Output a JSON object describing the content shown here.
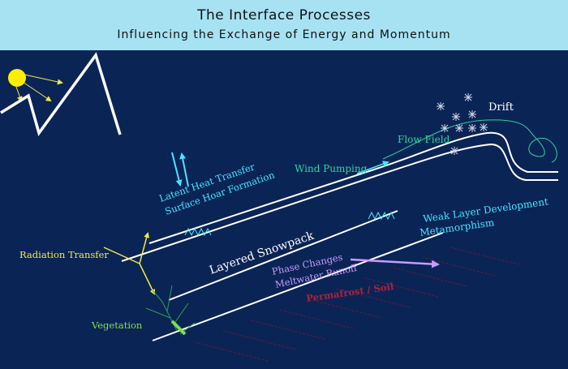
{
  "header": {
    "title": "The Interface Processes",
    "subtitle": "Influencing the Exchange of Energy and Momentum"
  },
  "labels": {
    "drift": "Drift",
    "flow_field": "Flow Field",
    "wind_pumping": "Wind Pumping",
    "latent_heat_line1": "Latent Heat Transfer",
    "latent_heat_line2": "Surface Hoar Formation",
    "weak_layer_line1": "Weak Layer Development",
    "weak_layer_line2": "Metamorphism",
    "layered_snowpack": "Layered Snowpack",
    "radiation_transfer": "Radiation Transfer",
    "phase_changes_line1": "Phase Changes",
    "phase_changes_line2": "Meltwater Runoff",
    "permafrost": "Permafrost / Soil",
    "vegetation": "Vegetation"
  },
  "colors": {
    "background": "#0b2456",
    "header_band": "#a6e2f2",
    "snow_lines": "#ffffff",
    "sun": "#ffee00",
    "radiation": "#f2e84a",
    "cyan_labels": "#44e6ff",
    "green_labels": "#2fd3a0",
    "vegetation": "#7ee04a",
    "phase_changes": "#c99bff",
    "permafrost": "#b0203a"
  },
  "icons": [
    "sun-icon",
    "mountain-icon",
    "snowflake-icon",
    "arrow-icon",
    "grass-icon"
  ]
}
